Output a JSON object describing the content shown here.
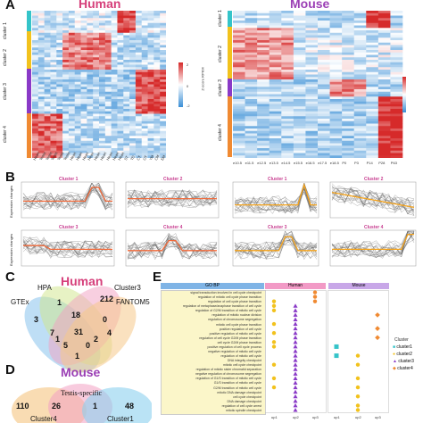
{
  "panels": {
    "A": "A",
    "B": "B",
    "C": "C",
    "D": "D",
    "E": "E"
  },
  "heatmap_human": {
    "title": "Human",
    "clusters": [
      "cluster 1",
      "cluster 2",
      "cluster 3",
      "cluster 4"
    ],
    "cluster_colors": [
      "#35c4c9",
      "#f2c21d",
      "#8a3ac7",
      "#f08a32"
    ],
    "legend_label": "Z-score RPKM",
    "legend_ticks": [
      "2",
      "1",
      "0",
      "-1",
      "-2"
    ],
    "columns": [
      "Heart",
      "Testis",
      "Testis",
      "Testis",
      "Testis",
      "Testis",
      "Heart",
      "Heart",
      "Heart",
      "Heart",
      "Heart",
      "Heart",
      "Heart",
      "Heart",
      "Heart",
      "ST",
      "TD",
      "CT",
      "OT",
      "YM",
      "CM",
      "EM"
    ]
  },
  "heatmap_mouse": {
    "title": "Mouse",
    "clusters": [
      "cluster 1",
      "cluster 2",
      "cluster 3",
      "cluster 4"
    ],
    "cluster_colors": [
      "#35c4c9",
      "#f2c21d",
      "#8a3ac7",
      "#f08a32"
    ],
    "legend_label": "Z-score RPKM",
    "legend_ticks": [
      "2",
      "1",
      "0",
      "-1",
      "-2"
    ],
    "columns": [
      "e10.5",
      "e11.5",
      "e12.5",
      "e13.5",
      "e14.5",
      "e15.5",
      "e16.5",
      "e17.5",
      "e18.5",
      "P0",
      "P3",
      "P14",
      "P28",
      "P63"
    ]
  },
  "lineplots": {
    "human": [
      "Cluster 1",
      "Cluster 2",
      "Cluster 3",
      "Cluster 4"
    ],
    "mouse": [
      "Cluster 1",
      "Cluster 2",
      "Cluster 3",
      "Cluster 4"
    ],
    "ylabel": "Expression changes"
  },
  "venn_human": {
    "title": "Human",
    "sets": [
      "GTEx",
      "HPA",
      "Cluster3",
      "FANTOM5"
    ],
    "numbers": [
      "3",
      "1",
      "212",
      "7",
      "18",
      "0",
      "4",
      "31",
      "2",
      "1",
      "5",
      "0",
      "1"
    ]
  },
  "venn_mouse": {
    "title": "Mouse",
    "sets": [
      "Testis-specific",
      "Cluster4",
      "Cluster1"
    ],
    "numbers": [
      "110",
      "26",
      "1",
      "48"
    ]
  },
  "gobp": {
    "header": "GO BP",
    "group_human": "Human",
    "group_mouse": "Mouse",
    "legend_title": "Cluster",
    "legend_items": [
      "cluster1",
      "cluster2",
      "cluster3",
      "cluster4"
    ],
    "terms": [
      "signal transduction involved in cell cycle checkpoint",
      "regulation of mitotic cell cycle phase transition",
      "regulation of cell cycle phase transition",
      "regulation of metaphase/anaphase transition of cell cycle",
      "regulation of G2/M transition of mitotic cell cycle",
      "regulation of mitotic nuclear division",
      "regulation of chromosome segregation",
      "mitotic cell cycle phase transition",
      "positive regulation of cell cycle",
      "positive regulation of mitotic cell cycle",
      "regulation of cell cycle G2/M phase transition",
      "cell cycle G2/M phase transition",
      "positive regulation of cell cycle process",
      "negative regulation of mitotic cell cycle",
      "regulation of mitotic cell cycle",
      "DNA integrity checkpoint",
      "mitotic cell cycle checkpoint",
      "regulation of mitotic sister chromatid separation",
      "negative regulation of chromosome segregation",
      "regulation of G1/S transition of mitotic cell cycle",
      "G1/S transition of mitotic cell cycle",
      "G2/M transition of mitotic cell cycle",
      "mitotic DNA damage checkpoint",
      "cell cycle checkpoint",
      "DNA damage checkpoint",
      "regulation of cell cycle arrest",
      "mitotic spindle checkpoint"
    ],
    "xaxis": [
      "up1",
      "up2",
      "up3",
      "up1",
      "up2",
      "up3"
    ]
  }
}
